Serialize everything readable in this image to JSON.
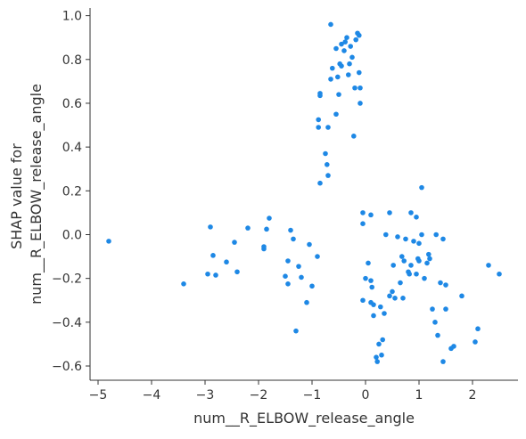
{
  "chart_data": {
    "type": "scatter",
    "xlabel": "num__R_ELBOW_release_angle",
    "ylabel_lines": [
      "SHAP value for",
      "num__R_ELBOW_release_angle"
    ],
    "xlim": [
      -5.15,
      2.85
    ],
    "ylim": [
      -0.665,
      1.035
    ],
    "x_ticks": [
      -5,
      -4,
      -3,
      -2,
      -1,
      0,
      1,
      2
    ],
    "x_tick_labels": [
      "−5",
      "−4",
      "−3",
      "−2",
      "−1",
      "0",
      "1",
      "2"
    ],
    "y_ticks": [
      -0.6,
      -0.4,
      -0.2,
      0.0,
      0.2,
      0.4,
      0.6,
      0.8,
      1.0
    ],
    "y_tick_labels": [
      "−0.6",
      "−0.4",
      "−0.2",
      "0.0",
      "0.2",
      "0.4",
      "0.6",
      "0.8",
      "1.0"
    ],
    "grid": false,
    "point_color": "#1e88e5",
    "points": [
      [
        -4.8,
        -0.03
      ],
      [
        -3.4,
        -0.225
      ],
      [
        -2.95,
        -0.18
      ],
      [
        -2.9,
        0.035
      ],
      [
        -2.85,
        -0.095
      ],
      [
        -2.8,
        -0.185
      ],
      [
        -2.6,
        -0.125
      ],
      [
        -2.45,
        -0.035
      ],
      [
        -2.4,
        -0.17
      ],
      [
        -2.2,
        0.03
      ],
      [
        -1.9,
        -0.065
      ],
      [
        -1.9,
        -0.055
      ],
      [
        -1.85,
        0.025
      ],
      [
        -1.8,
        0.075
      ],
      [
        -1.5,
        -0.19
      ],
      [
        -1.45,
        -0.12
      ],
      [
        -1.45,
        -0.225
      ],
      [
        -1.4,
        0.02
      ],
      [
        -1.35,
        -0.02
      ],
      [
        -1.3,
        -0.44
      ],
      [
        -1.25,
        -0.145
      ],
      [
        -1.2,
        -0.195
      ],
      [
        -1.1,
        -0.31
      ],
      [
        -1.05,
        -0.045
      ],
      [
        -1.0,
        -0.235
      ],
      [
        -0.9,
        -0.1
      ],
      [
        -0.88,
        0.525
      ],
      [
        -0.88,
        0.49
      ],
      [
        -0.85,
        0.635
      ],
      [
        -0.85,
        0.645
      ],
      [
        -0.85,
        0.235
      ],
      [
        -0.75,
        0.37
      ],
      [
        -0.72,
        0.32
      ],
      [
        -0.7,
        0.27
      ],
      [
        -0.7,
        0.49
      ],
      [
        -0.65,
        0.96
      ],
      [
        -0.65,
        0.71
      ],
      [
        -0.62,
        0.76
      ],
      [
        -0.55,
        0.55
      ],
      [
        -0.55,
        0.85
      ],
      [
        -0.52,
        0.72
      ],
      [
        -0.5,
        0.64
      ],
      [
        -0.48,
        0.78
      ],
      [
        -0.45,
        0.87
      ],
      [
        -0.45,
        0.77
      ],
      [
        -0.4,
        0.84
      ],
      [
        -0.38,
        0.88
      ],
      [
        -0.35,
        0.9
      ],
      [
        -0.32,
        0.73
      ],
      [
        -0.3,
        0.78
      ],
      [
        -0.28,
        0.86
      ],
      [
        -0.25,
        0.81
      ],
      [
        -0.22,
        0.45
      ],
      [
        -0.2,
        0.67
      ],
      [
        -0.18,
        0.89
      ],
      [
        -0.15,
        0.92
      ],
      [
        -0.12,
        0.91
      ],
      [
        -0.12,
        0.74
      ],
      [
        -0.1,
        0.67
      ],
      [
        -0.1,
        0.6
      ],
      [
        -0.05,
        0.1
      ],
      [
        -0.05,
        0.05
      ],
      [
        -0.05,
        -0.3
      ],
      [
        0.0,
        -0.2
      ],
      [
        0.05,
        -0.13
      ],
      [
        0.1,
        -0.31
      ],
      [
        0.1,
        -0.21
      ],
      [
        0.1,
        0.09
      ],
      [
        0.12,
        -0.24
      ],
      [
        0.15,
        -0.37
      ],
      [
        0.15,
        -0.32
      ],
      [
        0.2,
        -0.56
      ],
      [
        0.22,
        -0.58
      ],
      [
        0.25,
        -0.5
      ],
      [
        0.28,
        -0.33
      ],
      [
        0.3,
        -0.55
      ],
      [
        0.32,
        -0.48
      ],
      [
        0.35,
        -0.36
      ],
      [
        0.38,
        0.0
      ],
      [
        0.45,
        0.1
      ],
      [
        0.45,
        -0.28
      ],
      [
        0.5,
        -0.26
      ],
      [
        0.52,
        -0.14
      ],
      [
        0.55,
        -0.29
      ],
      [
        0.6,
        -0.01
      ],
      [
        0.65,
        -0.22
      ],
      [
        0.68,
        -0.1
      ],
      [
        0.7,
        -0.29
      ],
      [
        0.72,
        -0.12
      ],
      [
        0.75,
        -0.02
      ],
      [
        0.8,
        -0.17
      ],
      [
        0.82,
        -0.18
      ],
      [
        0.85,
        -0.14
      ],
      [
        0.85,
        0.1
      ],
      [
        0.9,
        -0.03
      ],
      [
        0.95,
        0.08
      ],
      [
        0.95,
        -0.18
      ],
      [
        0.98,
        -0.11
      ],
      [
        1.0,
        -0.04
      ],
      [
        1.0,
        -0.12
      ],
      [
        1.05,
        0.215
      ],
      [
        1.05,
        0.0
      ],
      [
        1.1,
        -0.2
      ],
      [
        1.15,
        -0.13
      ],
      [
        1.18,
        -0.09
      ],
      [
        1.2,
        -0.11
      ],
      [
        1.25,
        -0.34
      ],
      [
        1.3,
        -0.4
      ],
      [
        1.32,
        0.0
      ],
      [
        1.35,
        -0.46
      ],
      [
        1.4,
        -0.22
      ],
      [
        1.45,
        -0.02
      ],
      [
        1.45,
        -0.58
      ],
      [
        1.5,
        -0.23
      ],
      [
        1.5,
        -0.34
      ],
      [
        1.6,
        -0.52
      ],
      [
        1.65,
        -0.51
      ],
      [
        1.8,
        -0.28
      ],
      [
        2.05,
        -0.49
      ],
      [
        2.1,
        -0.43
      ],
      [
        2.3,
        -0.14
      ],
      [
        2.5,
        -0.18
      ]
    ]
  }
}
